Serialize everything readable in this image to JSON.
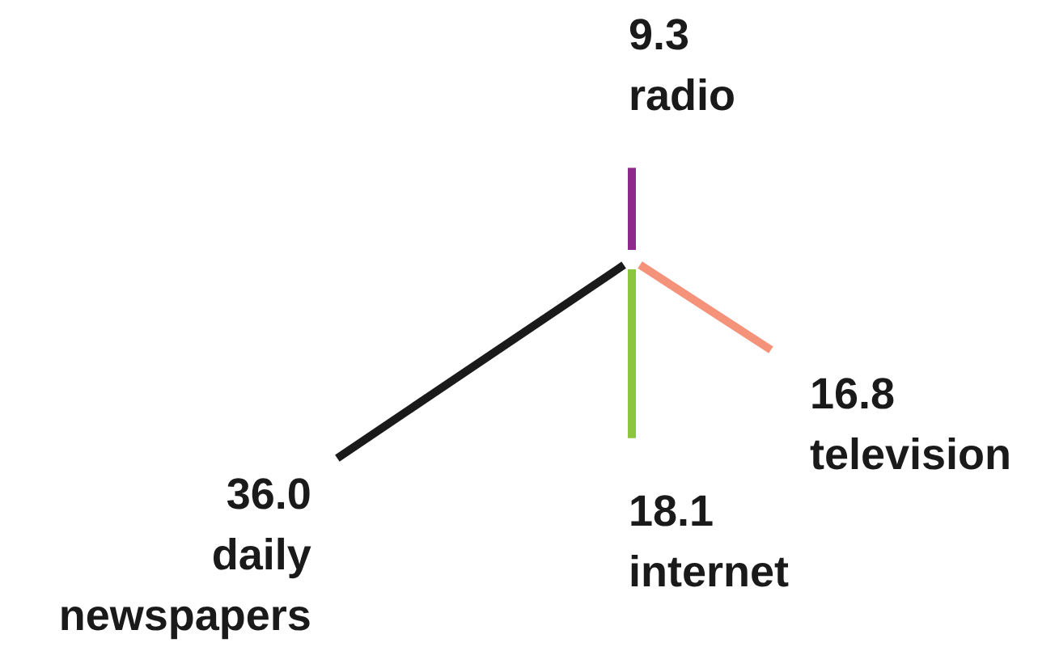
{
  "chart_data": {
    "type": "other",
    "categories": [
      "radio",
      "television",
      "internet",
      "daily\nnewspapers"
    ],
    "values": [
      9.3,
      16.8,
      18.1,
      36.0
    ],
    "value_labels": [
      "9.3",
      "16.8",
      "18.1",
      "36.0"
    ],
    "colors": [
      "#8e2a8c",
      "#f4927a",
      "#8cc63e",
      "#1a1a1a"
    ]
  }
}
